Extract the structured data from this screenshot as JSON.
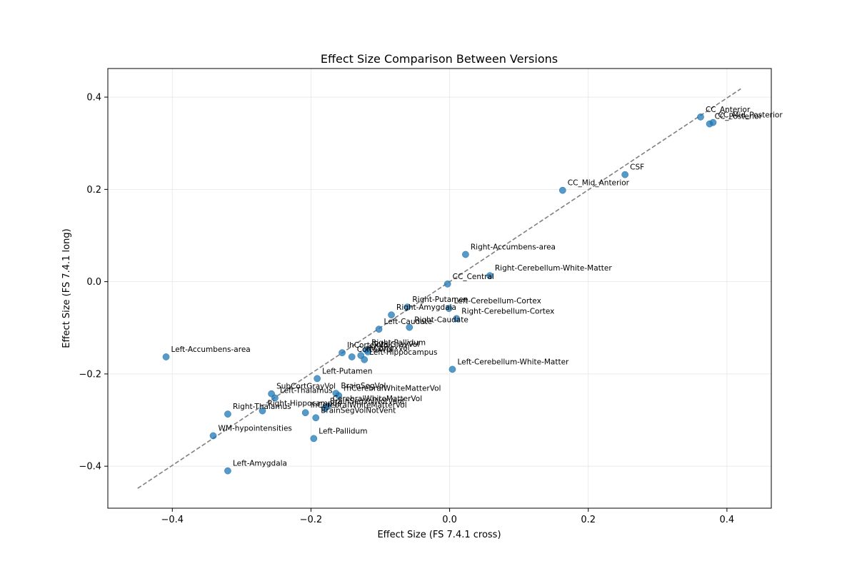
{
  "chart_data": {
    "type": "scatter",
    "title": "Effect Size Comparison Between Versions",
    "xlabel": "Effect Size (FS 7.4.1 cross)",
    "ylabel": "Effect Size (FS 7.4.1 long)",
    "xlim": [
      -0.493,
      0.464
    ],
    "ylim": [
      -0.491,
      0.462
    ],
    "xticks": [
      -0.4,
      -0.2,
      0.0,
      0.2,
      0.4
    ],
    "xtick_labels": [
      "−0.4",
      "−0.2",
      "0.0",
      "0.2",
      "0.4"
    ],
    "yticks": [
      -0.4,
      -0.2,
      0.0,
      0.2,
      0.4
    ],
    "ytick_labels": [
      "−0.4",
      "−0.2",
      "0.0",
      "0.2",
      "0.4"
    ],
    "grid": true,
    "point_color": "#1f77b4",
    "reference_line": {
      "x": [
        -0.45,
        0.42
      ],
      "y": [
        -0.448,
        0.418
      ],
      "style": "dashed",
      "color": "#7f7f7f"
    },
    "points": [
      {
        "label": "CC_Anterior",
        "x": 0.362,
        "y": 0.357
      },
      {
        "label": "CC_Mid_Posterior",
        "x": 0.38,
        "y": 0.345
      },
      {
        "label": "CC_Posterior",
        "x": 0.375,
        "y": 0.342
      },
      {
        "label": "CSF",
        "x": 0.253,
        "y": 0.232
      },
      {
        "label": "CC_Mid_Anterior",
        "x": 0.163,
        "y": 0.198
      },
      {
        "label": "Right-Accumbens-area",
        "x": 0.023,
        "y": 0.059
      },
      {
        "label": "Right-Cerebellum-White-Matter",
        "x": 0.058,
        "y": 0.013
      },
      {
        "label": "CC_Central",
        "x": -0.003,
        "y": -0.005
      },
      {
        "label": "Right-Putamen",
        "x": -0.061,
        "y": -0.055
      },
      {
        "label": "Left-Cerebellum-Cortex",
        "x": -0.001,
        "y": -0.058
      },
      {
        "label": "Right-Amygdala",
        "x": -0.084,
        "y": -0.072
      },
      {
        "label": "Right-Cerebellum-Cortex",
        "x": 0.01,
        "y": -0.08
      },
      {
        "label": "Right-Caudate",
        "x": -0.058,
        "y": -0.099
      },
      {
        "label": "Left-Caudate",
        "x": -0.102,
        "y": -0.103
      },
      {
        "label": "Right-Pallidum",
        "x": -0.12,
        "y": -0.148
      },
      {
        "label": "lhCortexVol",
        "x": -0.155,
        "y": -0.154
      },
      {
        "label": "TotalGrayVol",
        "x": -0.118,
        "y": -0.152
      },
      {
        "label": "CortexVol",
        "x": -0.141,
        "y": -0.163
      },
      {
        "label": "rhCortexVol",
        "x": -0.128,
        "y": -0.16
      },
      {
        "label": "Left-Hippocampus",
        "x": -0.123,
        "y": -0.169
      },
      {
        "label": "Left-Cerebellum-White-Matter",
        "x": 0.004,
        "y": -0.19
      },
      {
        "label": "Left-Accumbens-area",
        "x": -0.409,
        "y": -0.163
      },
      {
        "label": "Left-Putamen",
        "x": -0.191,
        "y": -0.21
      },
      {
        "label": "BrainSegVol",
        "x": -0.164,
        "y": -0.242
      },
      {
        "label": "rhCerebralWhiteMatterVol",
        "x": -0.16,
        "y": -0.247
      },
      {
        "label": "SubCortGrayVol",
        "x": -0.257,
        "y": -0.243
      },
      {
        "label": "Left-Thalamus",
        "x": -0.252,
        "y": -0.252
      },
      {
        "label": "CerebralWhiteMatterVol",
        "x": -0.176,
        "y": -0.27
      },
      {
        "label": "BrainSegVolNotVent",
        "x": -0.18,
        "y": -0.275
      },
      {
        "label": "Right-Hippocampus",
        "x": -0.27,
        "y": -0.28
      },
      {
        "label": "lhCerebralWhiteMatterVol",
        "x": -0.208,
        "y": -0.284
      },
      {
        "label": "Right-Thalamus",
        "x": -0.32,
        "y": -0.287
      },
      {
        "label": "BrainSegVolNotVent2",
        "x": -0.193,
        "y": -0.295
      },
      {
        "label": "WM-hypointensities",
        "x": -0.341,
        "y": -0.334
      },
      {
        "label": "Left-Pallidum",
        "x": -0.196,
        "y": -0.34
      },
      {
        "label": "Left-Amygdala",
        "x": -0.32,
        "y": -0.41
      }
    ]
  }
}
